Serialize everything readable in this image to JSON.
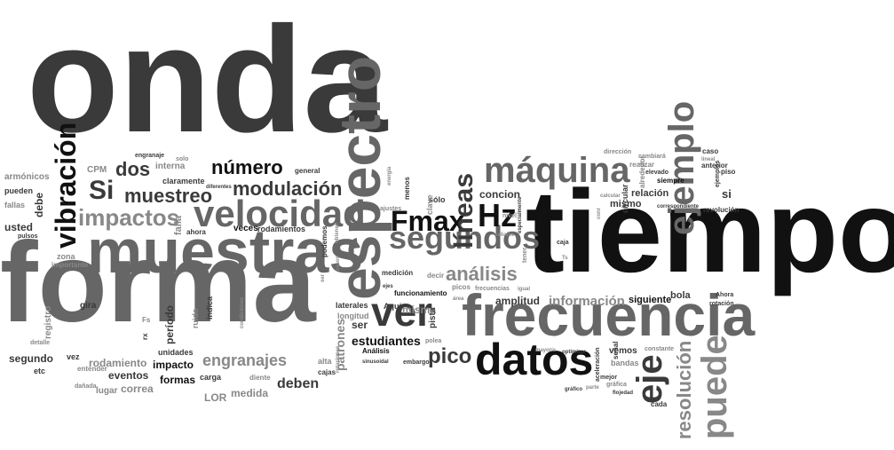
{
  "words": {
    "w000": "onda",
    "w001": "tiempo",
    "w002": "forma",
    "w003": "muestras",
    "w004": "espectro",
    "w005": "frecuencia",
    "w006": "datos",
    "w007": "velocidad",
    "w008": "ver",
    "w009": "máquina",
    "w010": "ejemplo",
    "w011": "segundos",
    "w012": "vibración",
    "w013": "Fmax",
    "w014": "líneas",
    "w015": "Hz",
    "w016": "impactos",
    "w017": "modulación",
    "w018": "número",
    "w019": "Si",
    "w020": "muestreo",
    "w021": "dos",
    "w022": "análisis",
    "w023": "eje",
    "w024": "puede",
    "w025": "resolución",
    "w026": "pico",
    "w027": "engranajes",
    "w028": "deben",
    "w029": "información",
    "w030": "patrones",
    "w031": "estudiantes",
    "w032": "ser",
    "w033": "misma",
    "w034": "amplitud",
    "w035": "concion",
    "w036": "mismo",
    "w037": "relación",
    "w038": "si",
    "w039": "revolución",
    "w040": "siguiente",
    "w041": "bola",
    "w042": "impacto",
    "w043": "formas",
    "w044": "rodamiento",
    "w045": "eventos",
    "w046": "correa",
    "w047": "segundo",
    "w048": "medida",
    "w049": "LOR",
    "w050": "lugar",
    "w051": "usted",
    "w052": "debe",
    "w053": "armónicos",
    "w054": "pueden",
    "w055": "fallas",
    "w056": "CPM",
    "w057": "interna",
    "w058": "claramente",
    "w059": "período",
    "w060": "veces",
    "w061": "rodamientos",
    "w062": "vemos",
    "w063": "bandas",
    "w064": "cada",
    "w065": "señal",
    "w066": "registro",
    "w067": "gira",
    "w068": "etc",
    "w069": "vez",
    "w070": "entender",
    "w071": "unidades",
    "w072": "carga",
    "w073": "diente",
    "w074": "alta",
    "w075": "cajas",
    "w076": "Análisis",
    "w077": "Aquí",
    "w078": "decir",
    "w079": "pista",
    "w080": "picos",
    "w081": "funcionamiento",
    "w082": "medición",
    "w083": "sólo",
    "w084": "clave",
    "w085": "menos",
    "w086": "longitud",
    "w087": "laterales",
    "w088": "podemos",
    "w089": "general",
    "w090": "falla",
    "w091": "ahora",
    "w092": "solo",
    "w093": "engranaje",
    "w094": "diferentes",
    "w095": "zona",
    "w096": "importante",
    "w097": "pulsos",
    "w098": "detalle",
    "w099": "dañada",
    "w100": "Fs",
    "w101": "rx",
    "w102": "ruido",
    "w103": "indica",
    "w104": "circular",
    "w105": "siempre",
    "w106": "realizar",
    "w107": "cambiará",
    "w108": "dirección",
    "w109": "alrededor",
    "w110": "elevado",
    "w111": "lineal",
    "w112": "caso",
    "w113": "anterior",
    "w114": "piso",
    "w115": "Ahora",
    "w116": "rotación",
    "w117": "constante",
    "w118": "mejor",
    "w119": "gráfica",
    "w120": "flojedad",
    "w121": "gráfico",
    "w122": "parte",
    "w123": "aceleración",
    "w124": "optimizar",
    "w125": "mayoría",
    "w126": "embargo",
    "w127": "sinusoidal",
    "w128": "polea",
    "w129": "caja",
    "w130": "Ts",
    "w131": "frecuencias",
    "w132": "igual",
    "w133": "tener",
    "w134": "nivel",
    "w135": "señales",
    "w136": "especialmente",
    "w137": "ajustes",
    "w138": "energía",
    "w139": "ejes",
    "w140": "área",
    "w141": "calcular",
    "w142": "correspondiente",
    "w143": "ejemplos",
    "w144": "conr",
    "w145": "rotaciones",
    "w146": "condiciones",
    "w147": "casos",
    "w148": "obtener",
    "w149": "ser"
  }
}
